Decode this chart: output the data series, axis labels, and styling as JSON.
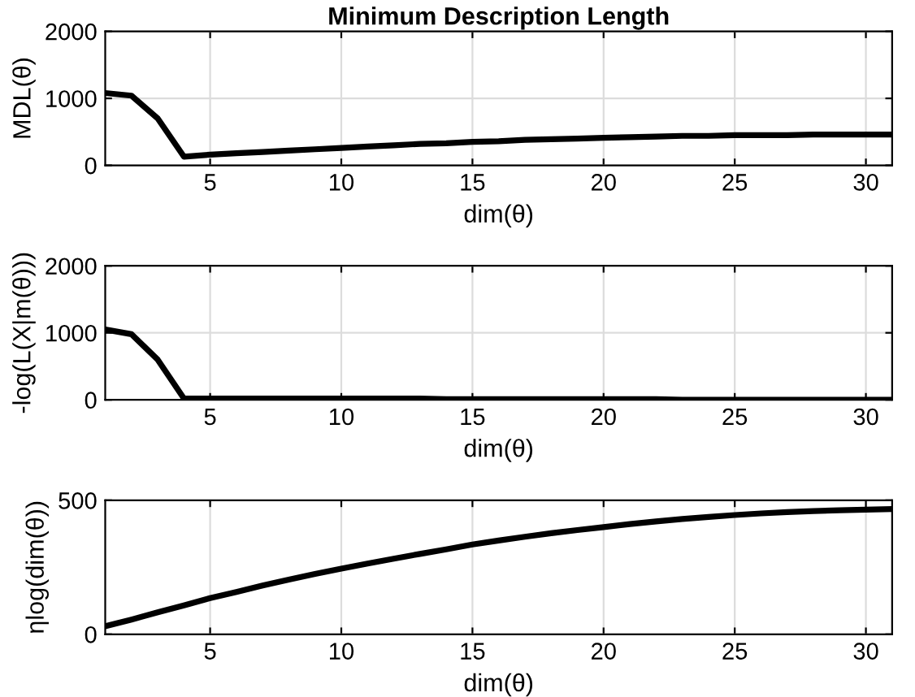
{
  "chart_data": [
    {
      "type": "line",
      "title": "Minimum Description Length",
      "xlabel": "dim(θ)",
      "ylabel": "MDL(θ)",
      "grid": true,
      "xlim": [
        1,
        31
      ],
      "ylim": [
        0,
        2000
      ],
      "xticks": [
        5,
        10,
        15,
        20,
        25,
        30
      ],
      "yticks": [
        0,
        1000,
        2000
      ],
      "x": [
        1,
        2,
        3,
        4,
        5,
        6,
        7,
        8,
        9,
        10,
        11,
        12,
        13,
        14,
        15,
        16,
        17,
        18,
        19,
        20,
        21,
        22,
        23,
        24,
        25,
        26,
        27,
        28,
        29,
        30,
        31
      ],
      "series": [
        {
          "color": "#000000",
          "values": [
            1080,
            1040,
            700,
            130,
            160,
            180,
            200,
            220,
            240,
            260,
            280,
            300,
            320,
            330,
            350,
            360,
            380,
            390,
            400,
            410,
            420,
            430,
            440,
            440,
            450,
            450,
            450,
            460,
            460,
            460,
            460
          ]
        }
      ]
    },
    {
      "type": "line",
      "xlabel": "dim(θ)",
      "ylabel": "-log(L(X|m(θ)))",
      "grid": true,
      "xlim": [
        1,
        31
      ],
      "ylim": [
        0,
        2000
      ],
      "xticks": [
        5,
        10,
        15,
        20,
        25,
        30
      ],
      "yticks": [
        0,
        1000,
        2000
      ],
      "x": [
        1,
        2,
        3,
        4,
        5,
        6,
        7,
        8,
        9,
        10,
        11,
        12,
        13,
        14,
        15,
        16,
        17,
        18,
        19,
        20,
        21,
        22,
        23,
        24,
        25,
        26,
        27,
        28,
        29,
        30,
        31
      ],
      "series": [
        {
          "color": "#000000",
          "values": [
            1050,
            980,
            600,
            20,
            20,
            20,
            20,
            20,
            20,
            20,
            20,
            20,
            20,
            10,
            10,
            10,
            10,
            10,
            10,
            10,
            10,
            10,
            0,
            0,
            0,
            0,
            0,
            0,
            0,
            0,
            0
          ]
        }
      ]
    },
    {
      "type": "line",
      "xlabel": "dim(θ)",
      "ylabel": "ηlog(dim(θ))",
      "grid": true,
      "xlim": [
        1,
        31
      ],
      "ylim": [
        0,
        500
      ],
      "xticks": [
        5,
        10,
        15,
        20,
        25,
        30
      ],
      "yticks": [
        0,
        500
      ],
      "x": [
        1,
        2,
        3,
        4,
        5,
        6,
        7,
        8,
        9,
        10,
        11,
        12,
        13,
        14,
        15,
        16,
        17,
        18,
        19,
        20,
        21,
        22,
        23,
        24,
        25,
        26,
        27,
        28,
        29,
        30,
        31
      ],
      "series": [
        {
          "color": "#000000",
          "values": [
            30,
            55,
            82,
            108,
            135,
            158,
            182,
            204,
            225,
            245,
            264,
            282,
            300,
            317,
            335,
            350,
            364,
            377,
            389,
            400,
            411,
            421,
            430,
            438,
            445,
            451,
            456,
            460,
            463,
            465,
            467
          ]
        }
      ]
    }
  ]
}
